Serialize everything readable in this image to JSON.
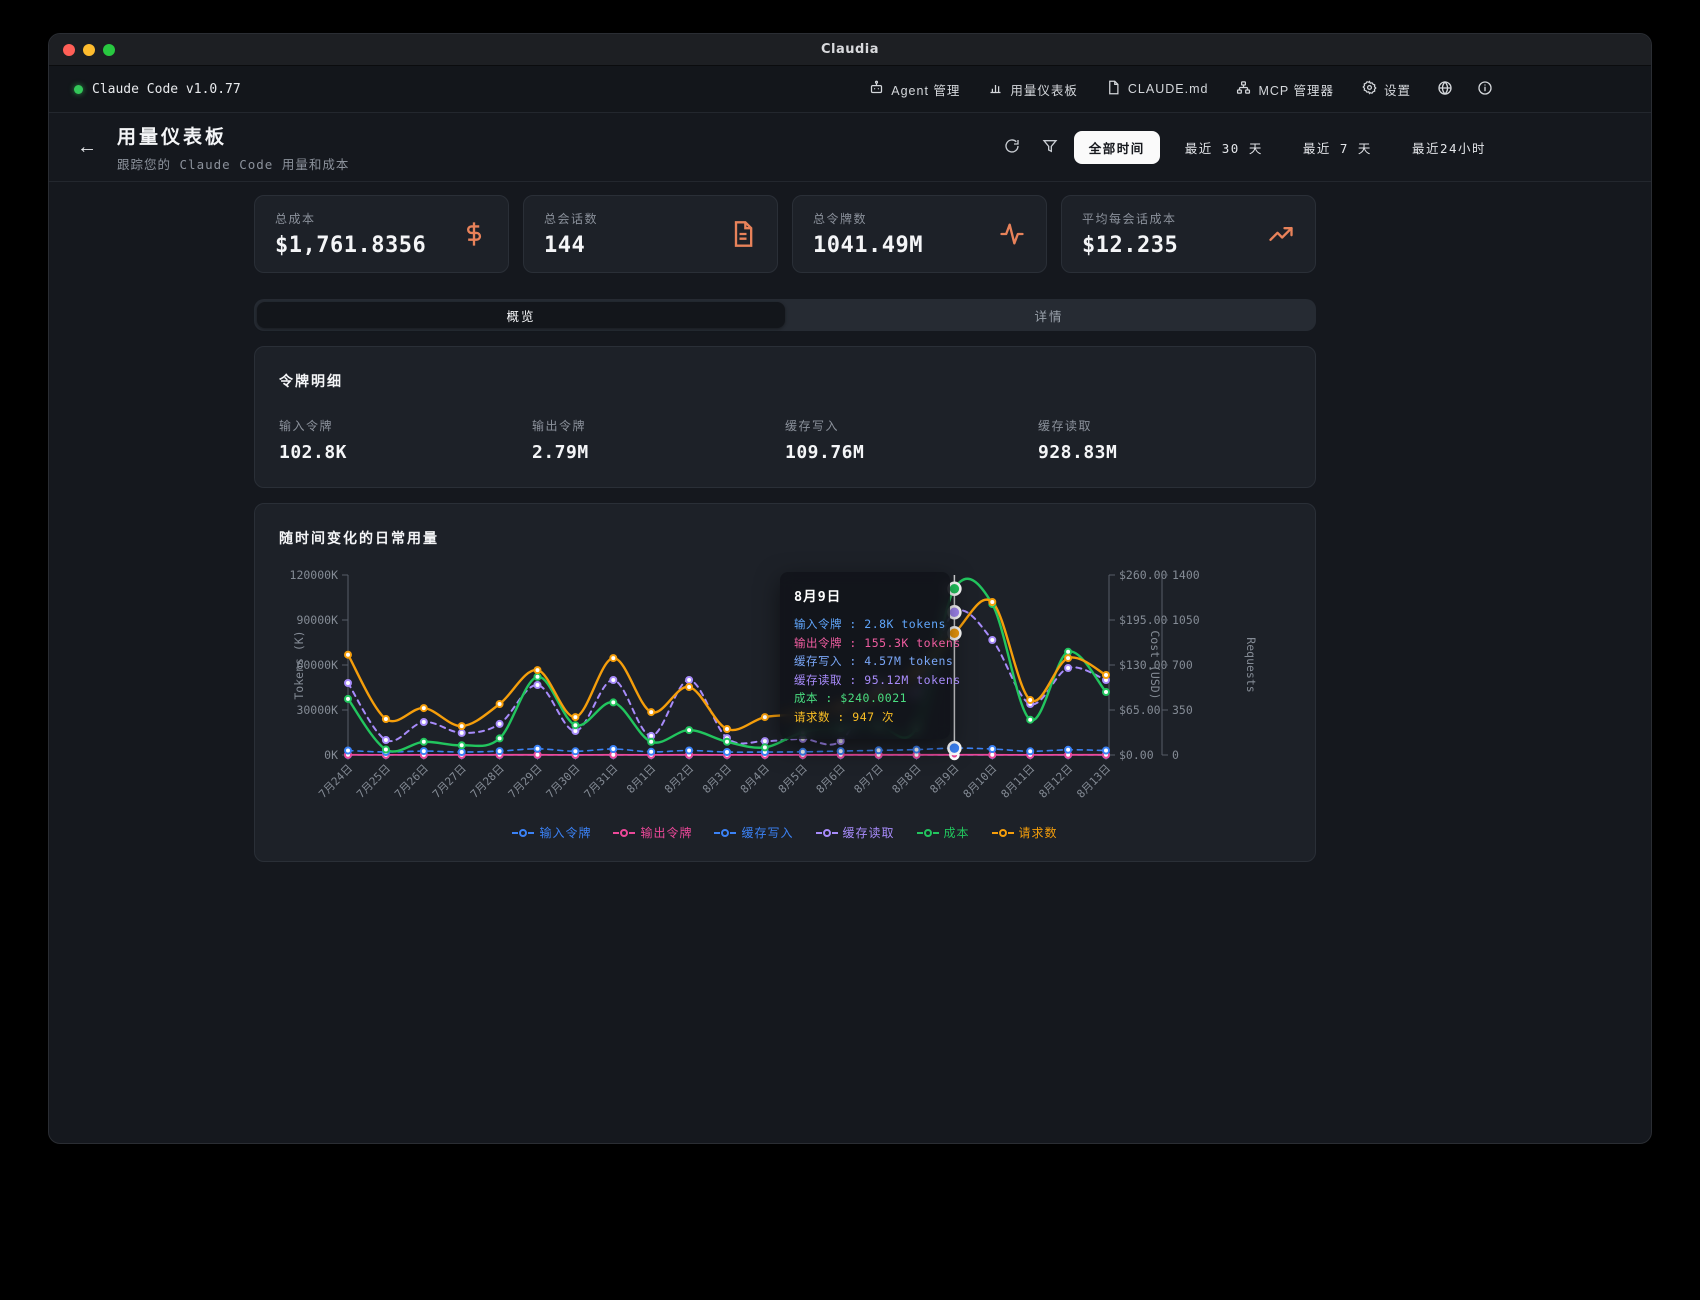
{
  "window": {
    "title": "Claudia"
  },
  "navbar": {
    "status_label": "Claude Code v1.0.77",
    "items": [
      {
        "label": "Agent 管理",
        "icon": "bot-icon"
      },
      {
        "label": "用量仪表板",
        "icon": "bar-chart-icon"
      },
      {
        "label": "CLAUDE.md",
        "icon": "file-icon"
      },
      {
        "label": "MCP 管理器",
        "icon": "network-icon"
      },
      {
        "label": "设置",
        "icon": "gear-icon"
      }
    ]
  },
  "header": {
    "title": "用量仪表板",
    "subtitle": "跟踪您的 Claude Code 用量和成本",
    "filters": {
      "all": "全部时间",
      "d30": "最近 30 天",
      "d7": "最近 7 天",
      "h24": "最近24小时"
    }
  },
  "stats": [
    {
      "label": "总成本",
      "value": "$1,761.8356",
      "icon": "dollar-icon"
    },
    {
      "label": "总会话数",
      "value": "144",
      "icon": "file-text-icon"
    },
    {
      "label": "总令牌数",
      "value": "1041.49M",
      "icon": "activity-icon"
    },
    {
      "label": "平均每会话成本",
      "value": "$12.235",
      "icon": "trending-up-icon"
    }
  ],
  "tabs": {
    "overview": "概览",
    "details": "详情"
  },
  "token_breakdown": {
    "title": "令牌明细",
    "items": [
      {
        "label": "输入令牌",
        "value": "102.8K"
      },
      {
        "label": "输出令牌",
        "value": "2.79M"
      },
      {
        "label": "缓存写入",
        "value": "109.76M"
      },
      {
        "label": "缓存读取",
        "value": "928.83M"
      }
    ]
  },
  "chart_section": {
    "title": "随时间变化的日常用量"
  },
  "tooltip": {
    "title": "8月9日",
    "rows": [
      {
        "label": "输入令牌",
        "value": "2.8K tokens",
        "color": "#60a5fa"
      },
      {
        "label": "输出令牌",
        "value": "155.3K tokens",
        "color": "#ef5da0"
      },
      {
        "label": "缓存写入",
        "value": "4.57M tokens",
        "color": "#7aa7f8"
      },
      {
        "label": "缓存读取",
        "value": "95.12M tokens",
        "color": "#a78bfa"
      },
      {
        "label": "成本",
        "value": "$240.0021",
        "color": "#4ade80"
      },
      {
        "label": "请求数",
        "value": "947 次",
        "color": "#fbbf24"
      }
    ]
  },
  "chart_data": {
    "type": "line",
    "title": "随时间变化的日常用量",
    "x": [
      "7月24日",
      "7月25日",
      "7月26日",
      "7月27日",
      "7月28日",
      "7月29日",
      "7月30日",
      "7月31日",
      "8月1日",
      "8月2日",
      "8月3日",
      "8月4日",
      "8月5日",
      "8月6日",
      "8月7日",
      "8月8日",
      "8月9日",
      "8月10日",
      "8月11日",
      "8月12日",
      "8月13日"
    ],
    "axes": {
      "tokens": {
        "label": "Tokens (K)",
        "min": 0,
        "max": 120000,
        "ticks": [
          "0K",
          "30000K",
          "60000K",
          "90000K",
          "120000K"
        ]
      },
      "cost": {
        "label": "Cost (USD)",
        "min": 0,
        "max": 260,
        "ticks": [
          "$0.00",
          "$65.00",
          "$130.00",
          "$195.00",
          "$260.00"
        ]
      },
      "requests": {
        "label": "Requests",
        "min": 0,
        "max": 1400,
        "ticks": [
          "0",
          "350",
          "700",
          "1050",
          "1400"
        ]
      }
    },
    "legend_position": "bottom",
    "grid": false,
    "hover_index": 16,
    "series": [
      {
        "name": "输入令牌",
        "axis": "tokens",
        "color": "#3b82f6",
        "dash": true,
        "width": 1.6,
        "values": [
          3,
          1,
          2,
          1,
          2,
          3,
          2,
          3,
          1,
          2,
          1,
          1,
          1,
          2,
          2,
          3,
          2.8,
          3,
          2,
          3,
          2
        ]
      },
      {
        "name": "输出令牌",
        "axis": "tokens",
        "color": "#ec4899",
        "dash": false,
        "width": 1.8,
        "values": [
          120,
          80,
          90,
          70,
          100,
          140,
          90,
          150,
          80,
          110,
          60,
          80,
          90,
          100,
          110,
          130,
          155.3,
          160,
          90,
          140,
          120
        ]
      },
      {
        "name": "缓存写入",
        "axis": "tokens",
        "color": "#3b82f6",
        "dash": true,
        "width": 1.6,
        "values": [
          3000,
          2000,
          2600,
          2000,
          2600,
          4100,
          2500,
          4000,
          2100,
          3000,
          2000,
          2000,
          2100,
          2600,
          3100,
          3600,
          4570,
          4000,
          2500,
          3500,
          3000
        ]
      },
      {
        "name": "缓存读取",
        "axis": "tokens",
        "color": "#a78bfa",
        "dash": true,
        "width": 2,
        "values": [
          48000,
          10000,
          22000,
          14700,
          20700,
          46700,
          16000,
          50000,
          12700,
          50000,
          11300,
          9300,
          10700,
          9300,
          47300,
          42000,
          95120,
          76700,
          34000,
          58000,
          50000
        ]
      },
      {
        "name": "成本",
        "axis": "cost",
        "color": "#22c55e",
        "dash": false,
        "width": 2.4,
        "values": [
          81,
          8,
          19,
          14,
          24,
          113,
          43,
          76,
          19,
          36,
          19,
          11,
          33,
          39,
          42,
          39,
          240,
          218,
          51,
          149,
          91
        ]
      },
      {
        "name": "请求数",
        "axis": "requests",
        "color": "#f59e0b",
        "dash": false,
        "width": 2.4,
        "values": [
          780,
          280,
          365,
          225,
          397,
          660,
          295,
          754,
          334,
          529,
          202,
          295,
          319,
          373,
          467,
          645,
          947,
          1190,
          428,
          754,
          622
        ]
      }
    ]
  }
}
